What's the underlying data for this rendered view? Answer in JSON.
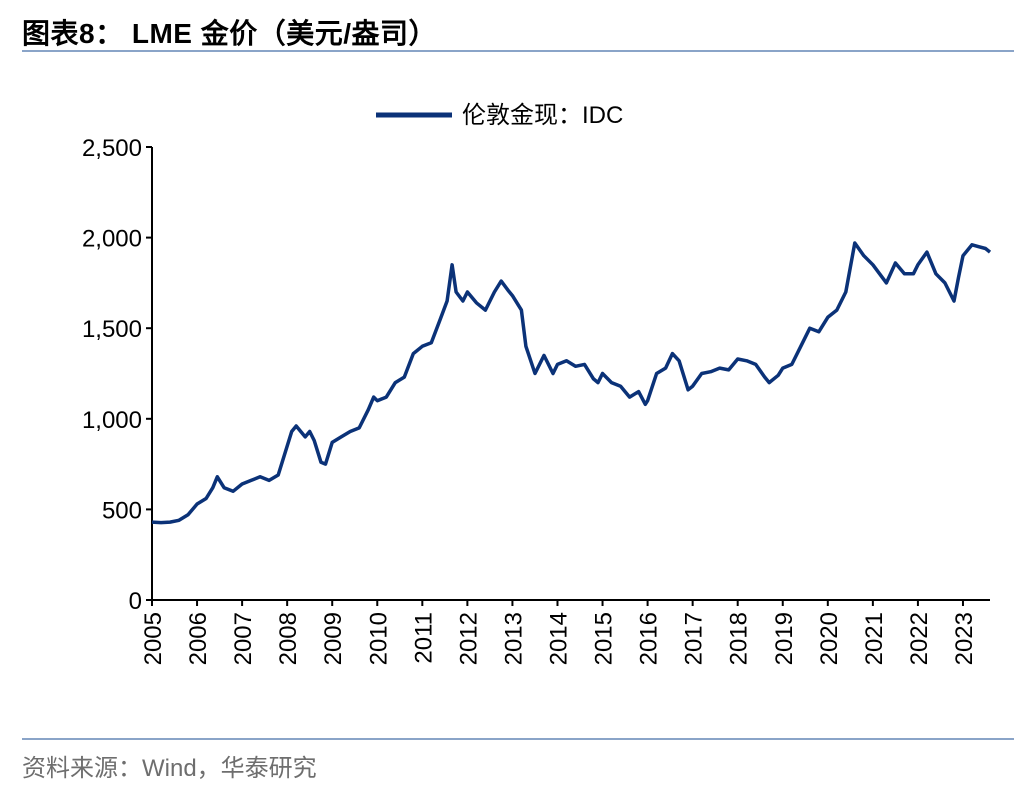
{
  "header": {
    "title": "图表8： LME 金价（美元/盎司）"
  },
  "footer": {
    "source": "资料来源：Wind，华泰研究"
  },
  "chart_data": {
    "type": "line",
    "title": "LME 金价（美元/盎司）",
    "legend": {
      "position": "top-center",
      "entries": [
        "伦敦金现：IDC"
      ]
    },
    "y_ticks": [
      "0",
      "500",
      "1,000",
      "1,500",
      "2,000",
      "2,500"
    ],
    "x_ticks": [
      "2005",
      "2006",
      "2007",
      "2008",
      "2009",
      "2010",
      "2011",
      "2012",
      "2013",
      "2014",
      "2015",
      "2016",
      "2017",
      "2018",
      "2019",
      "2020",
      "2021",
      "2022",
      "2023"
    ],
    "ylim": [
      0,
      2500
    ],
    "xlim": [
      2005.0,
      2023.6
    ],
    "grid": false,
    "colors": {
      "series": "#0b3278",
      "axis": "#000000"
    },
    "series": [
      {
        "name": "伦敦金现：IDC",
        "x": [
          2005.0,
          2005.2,
          2005.4,
          2005.6,
          2005.8,
          2006.0,
          2006.2,
          2006.35,
          2006.45,
          2006.6,
          2006.8,
          2007.0,
          2007.2,
          2007.4,
          2007.6,
          2007.8,
          2008.0,
          2008.1,
          2008.2,
          2008.4,
          2008.5,
          2008.6,
          2008.75,
          2008.85,
          2009.0,
          2009.2,
          2009.4,
          2009.6,
          2009.8,
          2009.92,
          2010.0,
          2010.2,
          2010.4,
          2010.6,
          2010.8,
          2011.0,
          2011.2,
          2011.4,
          2011.55,
          2011.66,
          2011.75,
          2011.9,
          2012.0,
          2012.2,
          2012.4,
          2012.6,
          2012.75,
          2012.9,
          2013.0,
          2013.2,
          2013.3,
          2013.5,
          2013.7,
          2013.9,
          2014.0,
          2014.2,
          2014.4,
          2014.6,
          2014.8,
          2014.9,
          2015.0,
          2015.2,
          2015.4,
          2015.6,
          2015.8,
          2015.95,
          2016.0,
          2016.2,
          2016.4,
          2016.55,
          2016.7,
          2016.9,
          2017.0,
          2017.2,
          2017.4,
          2017.6,
          2017.8,
          2018.0,
          2018.2,
          2018.4,
          2018.6,
          2018.7,
          2018.9,
          2019.0,
          2019.2,
          2019.4,
          2019.6,
          2019.8,
          2020.0,
          2020.2,
          2020.4,
          2020.6,
          2020.8,
          2021.0,
          2021.15,
          2021.3,
          2021.5,
          2021.7,
          2021.9,
          2022.0,
          2022.2,
          2022.4,
          2022.6,
          2022.8,
          2022.9,
          2023.0,
          2023.2,
          2023.35,
          2023.5,
          2023.6
        ],
        "values": [
          430,
          427,
          430,
          440,
          470,
          530,
          560,
          620,
          680,
          620,
          600,
          640,
          660,
          680,
          660,
          690,
          850,
          930,
          960,
          900,
          930,
          880,
          760,
          750,
          870,
          900,
          930,
          950,
          1050,
          1120,
          1100,
          1120,
          1200,
          1230,
          1360,
          1400,
          1420,
          1550,
          1650,
          1850,
          1700,
          1650,
          1700,
          1640,
          1600,
          1700,
          1760,
          1710,
          1680,
          1600,
          1400,
          1250,
          1350,
          1250,
          1300,
          1320,
          1290,
          1300,
          1220,
          1200,
          1250,
          1200,
          1180,
          1120,
          1150,
          1080,
          1100,
          1250,
          1280,
          1360,
          1320,
          1160,
          1180,
          1250,
          1260,
          1280,
          1270,
          1330,
          1320,
          1300,
          1230,
          1200,
          1240,
          1280,
          1300,
          1400,
          1500,
          1480,
          1560,
          1600,
          1700,
          1970,
          1900,
          1850,
          1800,
          1750,
          1860,
          1800,
          1800,
          1850,
          1920,
          1800,
          1750,
          1650,
          1780,
          1900,
          1960,
          1950,
          1940,
          1920
        ]
      }
    ]
  }
}
